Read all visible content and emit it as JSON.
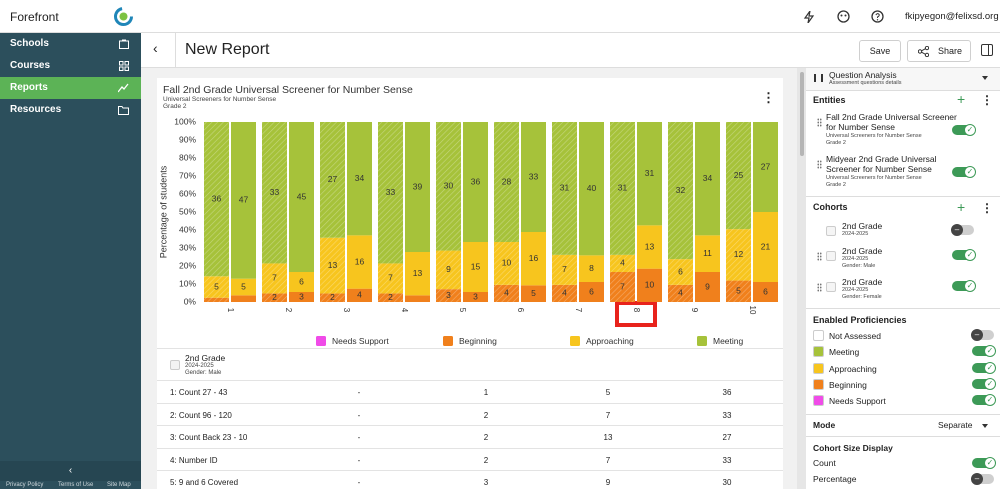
{
  "app": {
    "brand": "Forefront",
    "user": "fkipyegon@felixsd.org",
    "nav": [
      "Schools",
      "Courses",
      "Reports",
      "Resources"
    ],
    "footer": [
      "Privacy Policy",
      "Terms of Use",
      "Site Map"
    ]
  },
  "header": {
    "title": "New Report",
    "save": "Save",
    "share": "Share"
  },
  "chart_data": {
    "type": "bar",
    "stacking": "percent",
    "title": "Fall 2nd Grade Universal Screener for Number Sense",
    "subtitle": "Universal Screeners for Number Sense",
    "grade": "Grade 2",
    "y_label": "Percentage of students",
    "categories": [
      "1",
      "2",
      "3",
      "4",
      "5",
      "6",
      "7",
      "8",
      "9",
      "10"
    ],
    "ylim": [
      0,
      100
    ],
    "yticks": [
      {
        "value": 0,
        "label": "0%"
      },
      {
        "value": 10,
        "label": "10%"
      },
      {
        "value": 20,
        "label": "20%"
      },
      {
        "value": 30,
        "label": "30%"
      },
      {
        "value": 40,
        "label": "40%"
      },
      {
        "value": 50,
        "label": "50%"
      },
      {
        "value": 60,
        "label": "60%"
      },
      {
        "value": 70,
        "label": "70%"
      },
      {
        "value": 80,
        "label": "80%"
      },
      {
        "value": 90,
        "label": "90%"
      },
      {
        "value": 100,
        "label": "100%"
      }
    ],
    "series": [
      {
        "name": "Needs Support",
        "color": "#f04be8",
        "values": [
          [
            0,
            0
          ],
          [
            0,
            0
          ],
          [
            0,
            0
          ],
          [
            0,
            0
          ],
          [
            0,
            0
          ],
          [
            0,
            0
          ],
          [
            0,
            0
          ],
          [
            0,
            0
          ],
          [
            0,
            0
          ],
          [
            0,
            0
          ]
        ]
      },
      {
        "name": "Beginning",
        "color": "#f0801c",
        "values": [
          [
            1,
            2
          ],
          [
            2,
            3
          ],
          [
            2,
            4
          ],
          [
            2,
            2
          ],
          [
            3,
            3
          ],
          [
            4,
            5
          ],
          [
            4,
            6
          ],
          [
            7,
            10
          ],
          [
            4,
            9
          ],
          [
            5,
            6
          ]
        ]
      },
      {
        "name": "Approaching",
        "color": "#f7c51e",
        "values": [
          [
            5,
            5
          ],
          [
            7,
            6
          ],
          [
            13,
            16
          ],
          [
            7,
            13
          ],
          [
            9,
            15
          ],
          [
            10,
            16
          ],
          [
            7,
            8
          ],
          [
            4,
            13
          ],
          [
            6,
            11
          ],
          [
            12,
            21
          ]
        ]
      },
      {
        "name": "Meeting",
        "color": "#a6c23a",
        "values": [
          [
            36,
            47
          ],
          [
            33,
            45
          ],
          [
            27,
            34
          ],
          [
            33,
            39
          ],
          [
            30,
            36
          ],
          [
            28,
            33
          ],
          [
            31,
            40
          ],
          [
            31,
            31
          ],
          [
            32,
            34
          ],
          [
            25,
            27
          ]
        ]
      }
    ]
  },
  "table": {
    "cohort": {
      "name": "2nd Grade",
      "year": "2024-2025",
      "filter": "Gender: Male"
    },
    "rows": [
      [
        "1: Count 27 - 43",
        "-",
        1,
        5,
        36
      ],
      [
        "2: Count 96 - 120",
        "-",
        2,
        7,
        33
      ],
      [
        "3: Count Back 23 - 10",
        "-",
        2,
        13,
        27
      ],
      [
        "4: Number ID",
        "-",
        2,
        7,
        33
      ],
      [
        "5: 9 and 6 Covered",
        "-",
        3,
        9,
        30
      ]
    ]
  },
  "panel": {
    "analysis": {
      "title": "Question Analysis",
      "subtitle": "Assessment questions details"
    },
    "entities": {
      "title": "Entities",
      "items": [
        {
          "name": "Fall 2nd Grade Universal Screener for Number Sense",
          "subject": "Universal Screeners for Number Sense",
          "grade": "Grade 2",
          "enabled": true
        },
        {
          "name": "Midyear 2nd Grade Universal Screener for Number Sense",
          "subject": "Universal Screeners for Number Sense",
          "grade": "Grade 2",
          "enabled": true
        }
      ]
    },
    "cohorts": {
      "title": "Cohorts",
      "items": [
        {
          "name": "2nd Grade",
          "year": "2024-2025",
          "enabled": false
        },
        {
          "name": "2nd Grade",
          "year": "2024-2025",
          "filter": "Gender: Male",
          "enabled": true
        },
        {
          "name": "2nd Grade",
          "year": "2024-2025",
          "filter": "Gender: Female",
          "enabled": true
        }
      ]
    },
    "proficiencies": {
      "title": "Enabled Proficiencies",
      "items": [
        {
          "name": "Not Assessed",
          "color": "#ffffff",
          "enabled": false
        },
        {
          "name": "Meeting",
          "color": "#a6c23a",
          "enabled": true
        },
        {
          "name": "Approaching",
          "color": "#f7c51e",
          "enabled": true
        },
        {
          "name": "Beginning",
          "color": "#f0801c",
          "enabled": true
        },
        {
          "name": "Needs Support",
          "color": "#f04be8",
          "enabled": true
        }
      ]
    },
    "mode": {
      "label": "Mode",
      "value": "Separate"
    },
    "cohort_size": {
      "title": "Cohort Size Display",
      "items": [
        {
          "name": "Count",
          "enabled": true
        },
        {
          "name": "Percentage",
          "enabled": false
        }
      ]
    }
  }
}
